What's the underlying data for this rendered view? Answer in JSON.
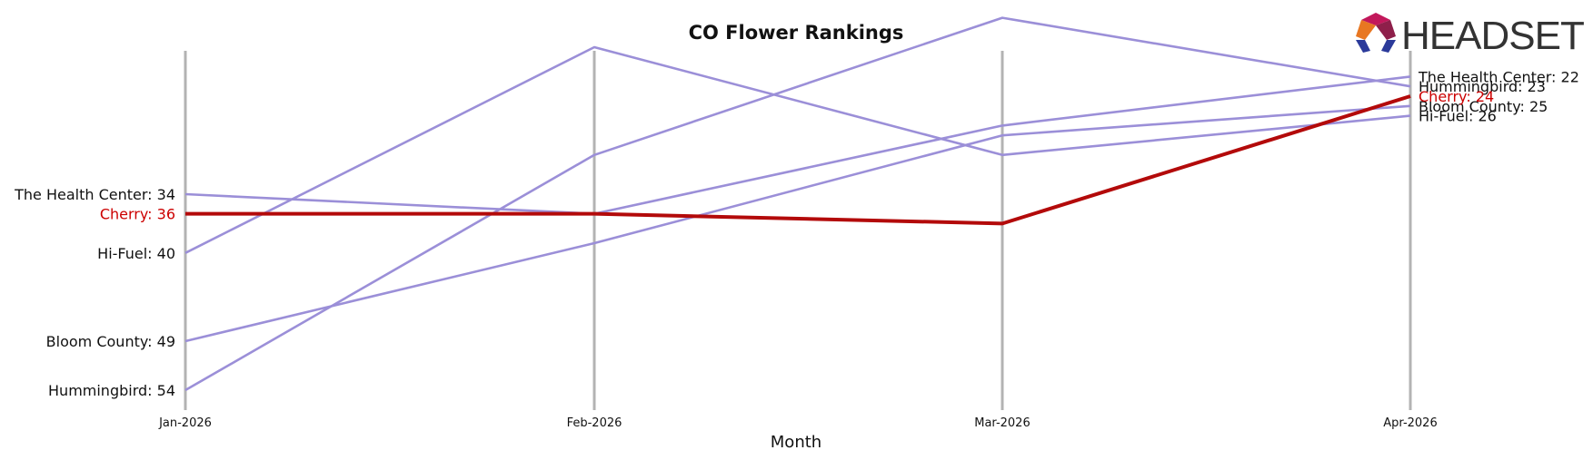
{
  "chart_data": {
    "type": "line",
    "title": "CO Flower Rankings",
    "xlabel": "Month",
    "ylabel": "",
    "categories": [
      "Jan-2026",
      "Feb-2026",
      "Mar-2026",
      "Apr-2026"
    ],
    "y_inverted": true,
    "ylim": [
      20,
      56
    ],
    "grid": "vertical",
    "series": [
      {
        "name": "The Health Center",
        "values": [
          34,
          36,
          27,
          22
        ],
        "color": "#9b8fd8",
        "highlight": false
      },
      {
        "name": "Hi-Fuel",
        "values": [
          40,
          19,
          30,
          26
        ],
        "color": "#9b8fd8",
        "highlight": false
      },
      {
        "name": "Bloom County",
        "values": [
          49,
          39,
          28,
          25
        ],
        "color": "#9b8fd8",
        "highlight": false
      },
      {
        "name": "Hummingbird",
        "values": [
          54,
          30,
          16,
          23
        ],
        "color": "#9b8fd8",
        "highlight": false
      },
      {
        "name": "Cherry",
        "values": [
          36,
          36,
          37,
          24
        ],
        "color": "#b30a0a",
        "highlight": true
      }
    ]
  },
  "logo": {
    "text": "HEADSET"
  },
  "colors": {
    "grid": "#b3b3b3",
    "highlight": "#b30a0a",
    "muted": "#9b8fd8",
    "label_highlight": "#cc0000"
  }
}
